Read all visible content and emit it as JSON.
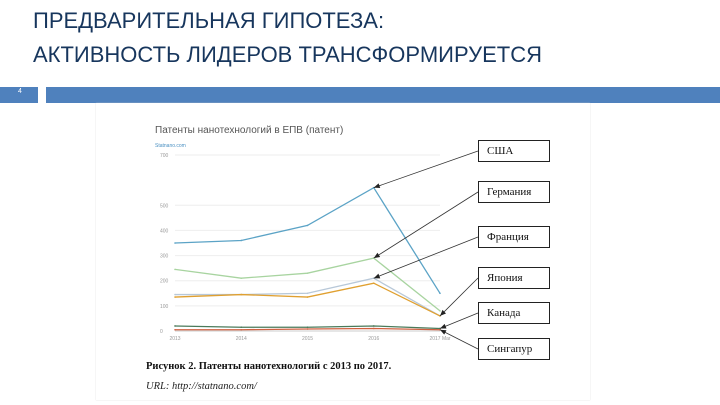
{
  "slide": {
    "title_line1": "ПРЕДВАРИТЕЛЬНАЯ ГИПОТЕЗА:",
    "title_line2": "АКТИВНОСТЬ ЛИДЕРОВ ТРАНСФОРМИРУЕТСЯ",
    "slide_number": "4"
  },
  "caption": "Рисунок 2. Патенты нанотехнологий с 2013 по 2017.",
  "url": "URL: http://statnano.com/",
  "colors": {
    "accent_bar": "#4f81bd",
    "title": "#17365d"
  },
  "chart_data": {
    "type": "line",
    "title": "Патенты нанотехнологий в ЕПВ (патент)",
    "source": "Statnano.com",
    "categories": [
      "2013",
      "2014",
      "2015",
      "2016",
      "2017 Mar"
    ],
    "ylim": [
      0,
      700
    ],
    "yticks": [
      0,
      100,
      200,
      300,
      400,
      500,
      700
    ],
    "grid": true,
    "series": [
      {
        "name": "США",
        "color": "#5ba3c6",
        "values": [
          350,
          360,
          420,
          570,
          150
        ]
      },
      {
        "name": "Германия",
        "color": "#a8d4a0",
        "values": [
          245,
          210,
          230,
          290,
          80
        ]
      },
      {
        "name": "Франция",
        "color": "#b8c8d8",
        "values": [
          145,
          145,
          150,
          210,
          60
        ]
      },
      {
        "name": "Япония",
        "color": "#e0a030",
        "values": [
          135,
          145,
          135,
          190,
          60
        ]
      },
      {
        "name": "Канада",
        "color": "#4a7a5a",
        "values": [
          20,
          15,
          15,
          20,
          10
        ]
      },
      {
        "name": "Сингапур",
        "color": "#d06040",
        "values": [
          5,
          5,
          8,
          10,
          5
        ]
      }
    ]
  }
}
